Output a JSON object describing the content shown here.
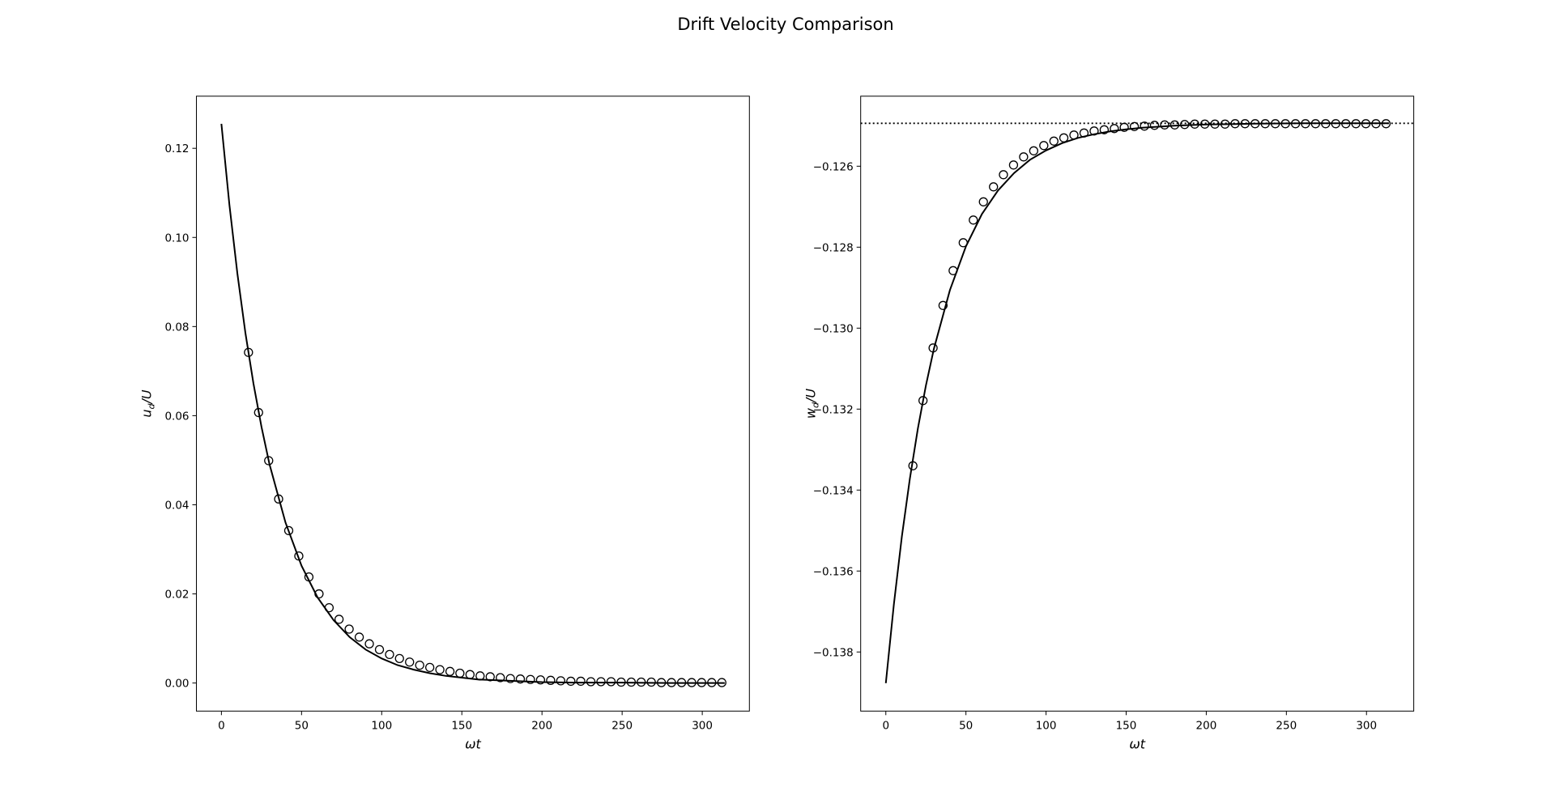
{
  "title": "Drift Velocity Comparison",
  "chart_data": [
    {
      "type": "line",
      "xlabel": "ωt",
      "ylabel": "ud/U",
      "xlim": [
        -15.6,
        329.4
      ],
      "ylim": [
        -0.0063,
        0.1317
      ],
      "xticks": [
        0,
        50,
        100,
        150,
        200,
        250,
        300
      ],
      "yticks": [
        {
          "value": 0,
          "label": "0.00"
        },
        {
          "value": 0.02,
          "label": "0.02"
        },
        {
          "value": 0.04,
          "label": "0.04"
        },
        {
          "value": 0.06,
          "label": "0.06"
        },
        {
          "value": 0.08,
          "label": "0.08"
        },
        {
          "value": 0.1,
          "label": "0.10"
        },
        {
          "value": 0.12,
          "label": "0.12"
        }
      ],
      "series": [
        {
          "type": "line",
          "color": "#000000",
          "x": [
            0,
            5,
            10,
            15,
            20,
            25,
            30,
            40,
            50,
            60,
            70,
            80,
            90,
            100,
            110,
            120,
            130,
            140,
            150,
            160,
            180,
            200,
            220,
            250,
            280,
            314
          ],
          "values": [
            0.1255,
            0.1073,
            0.0918,
            0.0785,
            0.0672,
            0.0575,
            0.0491,
            0.036,
            0.0263,
            0.0192,
            0.0141,
            0.0103,
            0.0075,
            0.0055,
            0.004,
            0.003,
            0.0022,
            0.0016,
            0.0012,
            0.0008,
            0.0005,
            0.0002,
            0.0001,
            0.0001,
            0,
            0
          ]
        },
        {
          "type": "scatter",
          "color": "#000000",
          "x": [
            16.9,
            23.2,
            29.5,
            35.7,
            42.0,
            48.3,
            54.6,
            60.9,
            67.2,
            73.4,
            79.7,
            86.0,
            92.3,
            98.6,
            104.9,
            111.1,
            117.4,
            123.7,
            130.0,
            136.3,
            142.6,
            148.8,
            155.1,
            161.4,
            167.7,
            174.0,
            180.3,
            186.5,
            192.8,
            199.1,
            205.4,
            211.7,
            218.0,
            224.2,
            230.5,
            236.8,
            243.1,
            249.4,
            255.7,
            261.9,
            268.2,
            274.5,
            280.8,
            287.1,
            293.4,
            299.6,
            305.9,
            312.2
          ],
          "values": [
            0.0742,
            0.0607,
            0.0499,
            0.0413,
            0.0342,
            0.0285,
            0.0238,
            0.02,
            0.0169,
            0.0143,
            0.0121,
            0.0103,
            0.0088,
            0.0075,
            0.0064,
            0.0055,
            0.0047,
            0.004,
            0.0035,
            0.003,
            0.0026,
            0.0022,
            0.0019,
            0.0016,
            0.0014,
            0.0012,
            0.001,
            0.0009,
            0.0008,
            0.0007,
            0.0006,
            0.0005,
            0.0004,
            0.0004,
            0.0003,
            0.0003,
            0.0003,
            0.0002,
            0.0002,
            0.0002,
            0.0002,
            0.0001,
            0.0001,
            0.0001,
            0.0001,
            0.0001,
            0.0001,
            0.0001
          ]
        }
      ]
    },
    {
      "type": "line",
      "xlabel": "ωt",
      "ylabel": "wd/U",
      "xlim": [
        -15.7,
        329.5
      ],
      "ylim": [
        -0.13946,
        -0.12427
      ],
      "xticks": [
        0,
        50,
        100,
        150,
        200,
        250,
        300
      ],
      "yticks": [
        {
          "value": -0.138,
          "label": "−0.138"
        },
        {
          "value": -0.136,
          "label": "−0.136"
        },
        {
          "value": -0.134,
          "label": "−0.134"
        },
        {
          "value": -0.132,
          "label": "−0.132"
        },
        {
          "value": -0.13,
          "label": "−0.130"
        },
        {
          "value": -0.128,
          "label": "−0.128"
        },
        {
          "value": -0.126,
          "label": "−0.126"
        }
      ],
      "hline": -0.12494,
      "series": [
        {
          "type": "line",
          "color": "#000000",
          "x": [
            0,
            5,
            10,
            15,
            20,
            25,
            30,
            40,
            50,
            60,
            70,
            80,
            90,
            100,
            110,
            120,
            130,
            140,
            150,
            160,
            180,
            200,
            230,
            260,
            314
          ],
          "values": [
            -0.13877,
            -0.13683,
            -0.13515,
            -0.13372,
            -0.13248,
            -0.13142,
            -0.13051,
            -0.12906,
            -0.12798,
            -0.12718,
            -0.1266,
            -0.12617,
            -0.12584,
            -0.12561,
            -0.12543,
            -0.1253,
            -0.12521,
            -0.12514,
            -0.12509,
            -0.12505,
            -0.125,
            -0.12497,
            -0.12495,
            -0.12494,
            -0.12494
          ]
        },
        {
          "type": "scatter",
          "color": "#000000",
          "x": [
            16.9,
            23.2,
            29.5,
            35.7,
            42.0,
            48.3,
            54.6,
            60.9,
            67.2,
            73.4,
            79.7,
            86.0,
            92.3,
            98.6,
            104.9,
            111.1,
            117.4,
            123.7,
            130.0,
            136.3,
            142.6,
            148.8,
            155.1,
            161.4,
            167.7,
            174.0,
            180.3,
            186.5,
            192.8,
            199.1,
            205.4,
            211.7,
            218.0,
            224.2,
            230.5,
            236.8,
            243.1,
            249.4,
            255.7,
            261.9,
            268.2,
            274.5,
            280.8,
            287.1,
            293.4,
            299.6,
            305.9,
            312.2
          ],
          "values": [
            -0.1334,
            -0.13179,
            -0.13049,
            -0.12944,
            -0.12858,
            -0.12789,
            -0.12733,
            -0.12688,
            -0.12651,
            -0.12621,
            -0.12597,
            -0.12577,
            -0.12562,
            -0.12549,
            -0.12538,
            -0.1253,
            -0.12523,
            -0.12518,
            -0.12513,
            -0.1251,
            -0.12507,
            -0.12504,
            -0.12502,
            -0.12501,
            -0.12499,
            -0.12498,
            -0.12498,
            -0.12497,
            -0.12496,
            -0.12496,
            -0.12496,
            -0.12496,
            -0.12495,
            -0.12495,
            -0.12495,
            -0.12495,
            -0.12495,
            -0.12495,
            -0.12495,
            -0.12495,
            -0.12495,
            -0.12495,
            -0.12495,
            -0.12495,
            -0.12495,
            -0.12495,
            -0.12495,
            -0.12495
          ]
        }
      ]
    }
  ]
}
